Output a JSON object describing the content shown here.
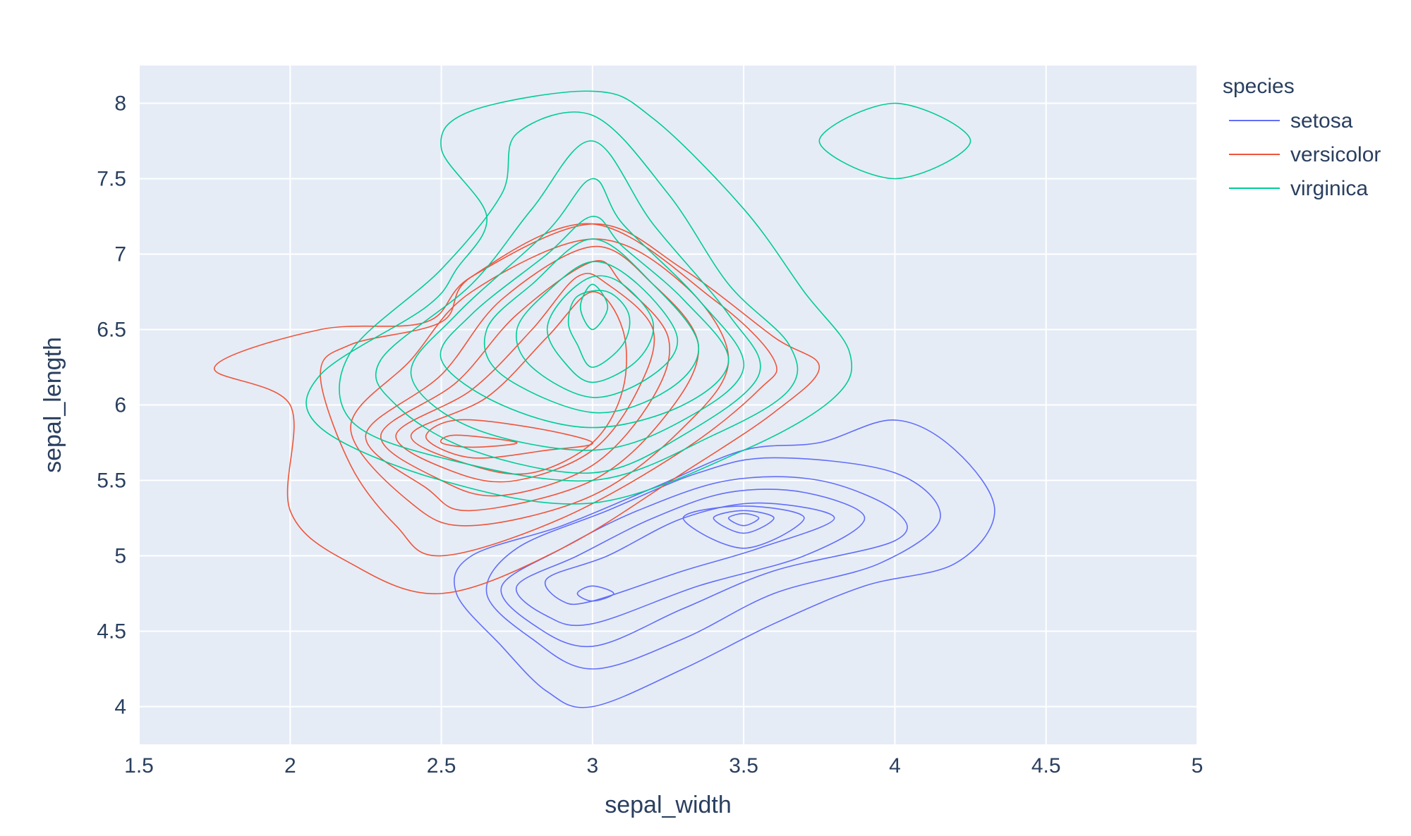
{
  "chart_data": {
    "type": "contour",
    "xlabel": "sepal_width",
    "ylabel": "sepal_length",
    "xlim": [
      1.5,
      5
    ],
    "ylim": [
      3.75,
      8.25
    ],
    "x_ticks": [
      "1.5",
      "2",
      "2.5",
      "3",
      "3.5",
      "4",
      "4.5",
      "5"
    ],
    "y_ticks": [
      "4",
      "4.5",
      "5",
      "5.5",
      "6",
      "6.5",
      "7",
      "7.5",
      "8"
    ],
    "grid": true,
    "legend": {
      "title": "species",
      "placement": "right"
    },
    "colors": {
      "plot_background": "#e5ecf6",
      "grid": "#ffffff",
      "text": "#2a3f5f"
    },
    "series": [
      {
        "name": "setosa",
        "color": "#636efa",
        "contours": [
          [
            [
              3.0,
              4.0
            ],
            [
              3.3,
              4.25
            ],
            [
              3.6,
              4.55
            ],
            [
              3.9,
              4.8
            ],
            [
              4.2,
              4.95
            ],
            [
              4.33,
              5.3
            ],
            [
              4.2,
              5.7
            ],
            [
              4.0,
              5.9
            ],
            [
              3.75,
              5.75
            ],
            [
              3.5,
              5.7
            ],
            [
              3.2,
              5.45
            ],
            [
              2.9,
              5.2
            ],
            [
              2.6,
              5.0
            ],
            [
              2.55,
              4.75
            ],
            [
              2.7,
              4.4
            ],
            [
              2.85,
              4.1
            ]
          ],
          [
            [
              3.0,
              4.25
            ],
            [
              3.3,
              4.45
            ],
            [
              3.6,
              4.75
            ],
            [
              3.95,
              4.95
            ],
            [
              4.15,
              5.25
            ],
            [
              4.0,
              5.55
            ],
            [
              3.6,
              5.65
            ],
            [
              3.35,
              5.55
            ],
            [
              3.05,
              5.3
            ],
            [
              2.75,
              5.05
            ],
            [
              2.65,
              4.75
            ],
            [
              2.8,
              4.45
            ]
          ],
          [
            [
              3.0,
              4.4
            ],
            [
              3.3,
              4.65
            ],
            [
              3.6,
              4.9
            ],
            [
              4.0,
              5.1
            ],
            [
              4.0,
              5.3
            ],
            [
              3.75,
              5.5
            ],
            [
              3.45,
              5.5
            ],
            [
              3.15,
              5.3
            ],
            [
              2.9,
              5.05
            ],
            [
              2.7,
              4.8
            ],
            [
              2.8,
              4.55
            ]
          ],
          [
            [
              3.0,
              4.55
            ],
            [
              3.35,
              4.8
            ],
            [
              3.7,
              5.0
            ],
            [
              3.9,
              5.25
            ],
            [
              3.7,
              5.42
            ],
            [
              3.45,
              5.42
            ],
            [
              3.2,
              5.25
            ],
            [
              2.95,
              5.0
            ],
            [
              2.75,
              4.8
            ],
            [
              2.85,
              4.6
            ]
          ],
          [
            [
              3.0,
              4.7
            ],
            [
              3.3,
              4.9
            ],
            [
              3.55,
              5.05
            ],
            [
              3.8,
              5.25
            ],
            [
              3.55,
              5.35
            ],
            [
              3.3,
              5.25
            ],
            [
              3.05,
              5.0
            ],
            [
              2.85,
              4.85
            ],
            [
              2.9,
              4.7
            ]
          ],
          [
            [
              3.5,
              5.05
            ],
            [
              3.7,
              5.25
            ],
            [
              3.5,
              5.33
            ],
            [
              3.3,
              5.25
            ]
          ],
          [
            [
              3.5,
              5.15
            ],
            [
              3.6,
              5.25
            ],
            [
              3.5,
              5.3
            ],
            [
              3.4,
              5.25
            ]
          ],
          [
            [
              3.0,
              4.7
            ],
            [
              3.07,
              4.75
            ],
            [
              3.0,
              4.8
            ],
            [
              2.95,
              4.75
            ]
          ],
          [
            [
              3.5,
              5.2
            ],
            [
              3.55,
              5.25
            ],
            [
              3.5,
              5.28
            ],
            [
              3.45,
              5.25
            ]
          ]
        ]
      },
      {
        "name": "versicolor",
        "color": "#ef553b",
        "contours": [
          [
            [
              2.5,
              4.75
            ],
            [
              2.9,
              5.05
            ],
            [
              3.3,
              5.55
            ],
            [
              3.6,
              5.95
            ],
            [
              3.75,
              6.25
            ],
            [
              3.6,
              6.45
            ],
            [
              3.3,
              6.9
            ],
            [
              3.0,
              7.2
            ],
            [
              2.6,
              6.85
            ],
            [
              2.45,
              6.55
            ],
            [
              2.1,
              6.5
            ],
            [
              1.75,
              6.25
            ],
            [
              2.0,
              6.0
            ],
            [
              2.0,
              5.3
            ],
            [
              2.2,
              4.95
            ]
          ],
          [
            [
              2.5,
              5.0
            ],
            [
              2.9,
              5.25
            ],
            [
              3.3,
              5.7
            ],
            [
              3.55,
              6.1
            ],
            [
              3.6,
              6.3
            ],
            [
              3.4,
              6.7
            ],
            [
              3.0,
              7.2
            ],
            [
              2.6,
              6.85
            ],
            [
              2.5,
              6.55
            ],
            [
              2.2,
              6.4
            ],
            [
              2.1,
              6.2
            ],
            [
              2.2,
              5.6
            ],
            [
              2.35,
              5.2
            ]
          ],
          [
            [
              2.6,
              5.2
            ],
            [
              3.0,
              5.4
            ],
            [
              3.3,
              5.85
            ],
            [
              3.45,
              6.3
            ],
            [
              3.3,
              6.8
            ],
            [
              3.0,
              7.1
            ],
            [
              2.6,
              6.75
            ],
            [
              2.4,
              6.3
            ],
            [
              2.2,
              5.85
            ],
            [
              2.4,
              5.35
            ]
          ],
          [
            [
              2.6,
              5.3
            ],
            [
              3.0,
              5.5
            ],
            [
              3.25,
              5.95
            ],
            [
              3.35,
              6.4
            ],
            [
              3.2,
              6.8
            ],
            [
              3.0,
              7.05
            ],
            [
              2.7,
              6.7
            ],
            [
              2.5,
              6.2
            ],
            [
              2.25,
              5.8
            ],
            [
              2.45,
              5.45
            ]
          ],
          [
            [
              2.7,
              5.4
            ],
            [
              3.0,
              5.6
            ],
            [
              3.2,
              6.05
            ],
            [
              3.25,
              6.45
            ],
            [
              3.1,
              6.8
            ],
            [
              3.0,
              6.95
            ],
            [
              2.75,
              6.6
            ],
            [
              2.55,
              6.15
            ],
            [
              2.3,
              5.8
            ],
            [
              2.5,
              5.5
            ]
          ],
          [
            [
              2.75,
              5.5
            ],
            [
              3.0,
              5.7
            ],
            [
              3.15,
              6.1
            ],
            [
              3.2,
              6.5
            ],
            [
              3.05,
              6.8
            ],
            [
              2.95,
              6.85
            ],
            [
              2.8,
              6.5
            ],
            [
              2.6,
              6.1
            ],
            [
              2.35,
              5.8
            ],
            [
              2.55,
              5.55
            ]
          ],
          [
            [
              2.8,
              5.55
            ],
            [
              3.0,
              5.75
            ],
            [
              3.1,
              6.1
            ],
            [
              3.1,
              6.5
            ],
            [
              3.0,
              6.75
            ],
            [
              2.85,
              6.45
            ],
            [
              2.65,
              6.05
            ],
            [
              2.4,
              5.8
            ],
            [
              2.6,
              5.6
            ]
          ],
          [
            [
              2.6,
              5.65
            ],
            [
              2.85,
              5.7
            ],
            [
              3.0,
              5.75
            ],
            [
              2.8,
              5.85
            ],
            [
              2.55,
              5.9
            ],
            [
              2.45,
              5.78
            ]
          ],
          [
            [
              2.5,
              5.75
            ],
            [
              2.6,
              5.72
            ],
            [
              2.75,
              5.75
            ],
            [
              2.55,
              5.8
            ]
          ]
        ]
      },
      {
        "name": "virginica",
        "color": "#00cc96",
        "contours": [
          [
            [
              3.0,
              5.35
            ],
            [
              3.5,
              5.7
            ],
            [
              3.8,
              6.05
            ],
            [
              3.85,
              6.35
            ],
            [
              3.7,
              6.75
            ],
            [
              3.5,
              7.3
            ],
            [
              3.2,
              7.9
            ],
            [
              3.0,
              8.08
            ],
            [
              2.6,
              7.95
            ],
            [
              2.5,
              7.7
            ],
            [
              2.65,
              7.25
            ],
            [
              2.55,
              6.9
            ],
            [
              2.45,
              6.65
            ],
            [
              2.1,
              6.2
            ],
            [
              2.1,
              5.85
            ],
            [
              2.5,
              5.5
            ]
          ],
          [
            [
              3.0,
              5.5
            ],
            [
              3.4,
              5.8
            ],
            [
              3.65,
              6.1
            ],
            [
              3.65,
              6.4
            ],
            [
              3.45,
              6.8
            ],
            [
              3.25,
              7.4
            ],
            [
              3.0,
              7.92
            ],
            [
              2.75,
              7.8
            ],
            [
              2.7,
              7.4
            ],
            [
              2.5,
              6.9
            ],
            [
              2.2,
              6.35
            ],
            [
              2.2,
              5.9
            ],
            [
              2.5,
              5.65
            ]
          ],
          [
            [
              3.0,
              5.55
            ],
            [
              3.3,
              5.8
            ],
            [
              3.55,
              6.2
            ],
            [
              3.45,
              6.6
            ],
            [
              3.2,
              7.2
            ],
            [
              3.0,
              7.75
            ],
            [
              2.8,
              7.3
            ],
            [
              2.6,
              6.8
            ],
            [
              2.3,
              6.3
            ],
            [
              2.35,
              6.0
            ],
            [
              2.6,
              5.7
            ]
          ],
          [
            [
              3.0,
              5.7
            ],
            [
              3.3,
              5.9
            ],
            [
              3.5,
              6.25
            ],
            [
              3.35,
              6.7
            ],
            [
              3.1,
              7.2
            ],
            [
              3.0,
              7.5
            ],
            [
              2.85,
              7.15
            ],
            [
              2.55,
              6.6
            ],
            [
              2.4,
              6.2
            ],
            [
              2.6,
              5.85
            ]
          ],
          [
            [
              3.0,
              5.85
            ],
            [
              3.3,
              6.0
            ],
            [
              3.45,
              6.3
            ],
            [
              3.3,
              6.7
            ],
            [
              3.1,
              7.05
            ],
            [
              3.0,
              7.25
            ],
            [
              2.85,
              7.0
            ],
            [
              2.6,
              6.6
            ],
            [
              2.5,
              6.3
            ],
            [
              2.7,
              6.0
            ]
          ],
          [
            [
              3.0,
              5.95
            ],
            [
              3.25,
              6.1
            ],
            [
              3.35,
              6.4
            ],
            [
              3.2,
              6.8
            ],
            [
              3.0,
              7.1
            ],
            [
              2.8,
              6.8
            ],
            [
              2.65,
              6.5
            ],
            [
              2.7,
              6.2
            ]
          ],
          [
            [
              3.0,
              6.05
            ],
            [
              3.2,
              6.2
            ],
            [
              3.28,
              6.45
            ],
            [
              3.15,
              6.8
            ],
            [
              3.0,
              6.95
            ],
            [
              2.85,
              6.75
            ],
            [
              2.75,
              6.5
            ],
            [
              2.8,
              6.25
            ]
          ],
          [
            [
              3.0,
              6.15
            ],
            [
              3.15,
              6.3
            ],
            [
              3.2,
              6.55
            ],
            [
              3.1,
              6.8
            ],
            [
              3.0,
              6.85
            ],
            [
              2.9,
              6.7
            ],
            [
              2.85,
              6.5
            ],
            [
              2.9,
              6.3
            ]
          ],
          [
            [
              3.0,
              6.25
            ],
            [
              3.1,
              6.4
            ],
            [
              3.12,
              6.6
            ],
            [
              3.05,
              6.75
            ],
            [
              2.95,
              6.72
            ],
            [
              2.92,
              6.55
            ],
            [
              2.95,
              6.4
            ]
          ],
          [
            [
              3.0,
              6.5
            ],
            [
              3.05,
              6.65
            ],
            [
              3.0,
              6.8
            ],
            [
              2.96,
              6.65
            ]
          ],
          [
            [
              4.0,
              7.5
            ],
            [
              4.25,
              7.75
            ],
            [
              4.0,
              8.0
            ],
            [
              3.75,
              7.75
            ]
          ]
        ]
      }
    ]
  }
}
